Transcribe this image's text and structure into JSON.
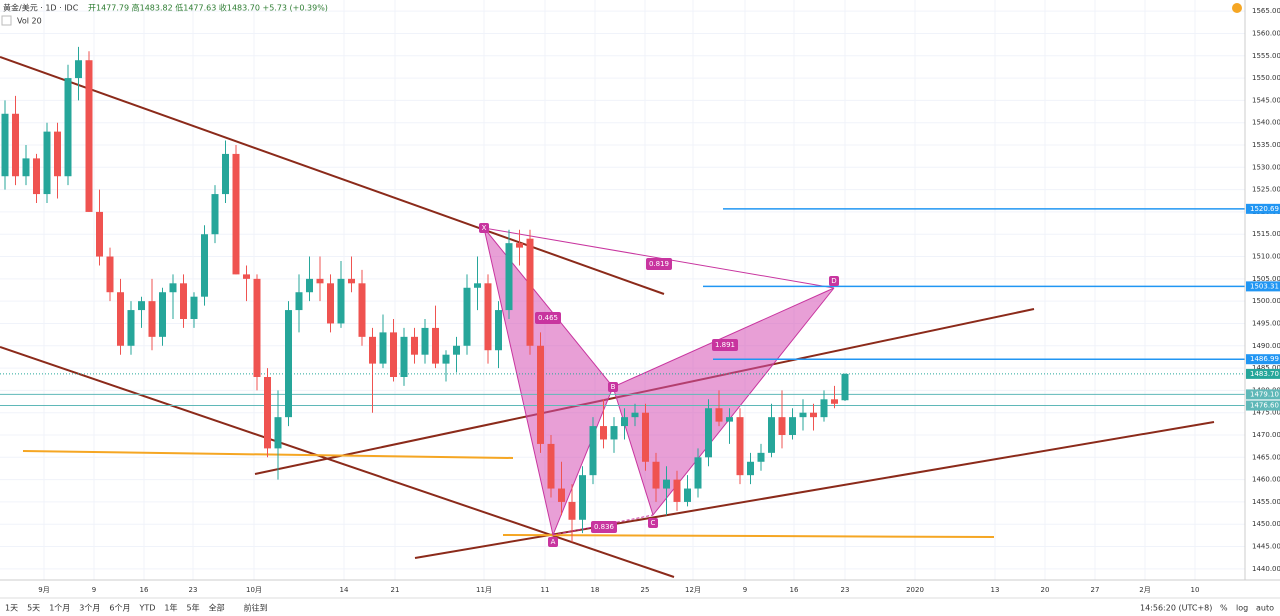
{
  "chart_data": {
    "type": "candlestick",
    "header": {
      "symbol": "黄金/美元 · 1D · IDC",
      "ohlc": "开1477.79 高1483.82 低1477.63 收1483.70 +5.73 (+0.39%)",
      "volume": "Vol 20"
    },
    "open": [
      1528,
      1542,
      1528,
      1532,
      1524,
      1538,
      1528,
      1550,
      1554,
      1520,
      1510,
      1502,
      1490,
      1498,
      1500,
      1492,
      1502,
      1504,
      1496,
      1501,
      1515,
      1524,
      1533,
      1506,
      1505,
      1483,
      1467,
      1474,
      1498,
      1502,
      1505,
      1504,
      1495,
      1505,
      1504,
      1492,
      1486,
      1493,
      1483,
      1492,
      1488,
      1494,
      1486,
      1488,
      1490,
      1503,
      1504,
      1489,
      1498,
      1513,
      1514,
      1490,
      1468,
      1458,
      1455,
      1451,
      1461,
      1472,
      1469,
      1472,
      1474,
      1475,
      1464,
      1458,
      1460,
      1455,
      1458,
      1465,
      1476,
      1473,
      1474,
      1461,
      1464,
      1466,
      1474,
      1470,
      1474,
      1475,
      1474,
      1478,
      1477.79
    ],
    "high": [
      1545,
      1546,
      1535,
      1533,
      1540,
      1540,
      1553,
      1557,
      1556,
      1525,
      1512,
      1505,
      1500,
      1501,
      1505,
      1503,
      1506,
      1506,
      1502,
      1517,
      1526,
      1536,
      1535,
      1508,
      1506,
      1485,
      1480,
      1500,
      1506,
      1510,
      1510,
      1506,
      1509,
      1510,
      1507,
      1494,
      1497,
      1496,
      1494,
      1494,
      1496,
      1499,
      1489,
      1492,
      1506,
      1510,
      1506,
      1500,
      1516,
      1516,
      1516,
      1493,
      1470,
      1464,
      1459,
      1463,
      1474,
      1478,
      1474,
      1476,
      1477,
      1477,
      1466,
      1463,
      1462,
      1461,
      1467,
      1478,
      1480,
      1476,
      1476,
      1466,
      1468,
      1477,
      1480,
      1476,
      1478,
      1477,
      1480,
      1481,
      1483.82
    ],
    "low": [
      1525,
      1526,
      1526,
      1522,
      1522,
      1523,
      1526,
      1545,
      1520,
      1508,
      1500,
      1488,
      1488,
      1494,
      1489,
      1490,
      1496,
      1494,
      1494,
      1499,
      1513,
      1522,
      1506,
      1500,
      1480,
      1465,
      1460,
      1472,
      1493,
      1500,
      1500,
      1493,
      1494,
      1502,
      1490,
      1475,
      1485,
      1482,
      1481,
      1486,
      1486,
      1485,
      1482,
      1484,
      1488,
      1498,
      1486,
      1485,
      1496,
      1508,
      1488,
      1466,
      1456,
      1452,
      1446,
      1448,
      1459,
      1467,
      1466,
      1469,
      1472,
      1462,
      1455,
      1452,
      1453,
      1454,
      1456,
      1463,
      1472,
      1468,
      1459,
      1459,
      1462,
      1465,
      1467,
      1469,
      1471,
      1471,
      1473,
      1476,
      1477.63
    ],
    "close": [
      1542,
      1528,
      1532,
      1524,
      1538,
      1528,
      1550,
      1554,
      1520,
      1510,
      1502,
      1490,
      1498,
      1500,
      1492,
      1502,
      1504,
      1496,
      1501,
      1515,
      1524,
      1533,
      1506,
      1505,
      1483,
      1467,
      1474,
      1498,
      1502,
      1505,
      1504,
      1495,
      1505,
      1504,
      1492,
      1486,
      1493,
      1483,
      1492,
      1488,
      1494,
      1486,
      1488,
      1490,
      1503,
      1504,
      1489,
      1498,
      1513,
      1512,
      1490,
      1468,
      1458,
      1455,
      1451,
      1461,
      1472,
      1469,
      1472,
      1474,
      1475,
      1464,
      1458,
      1460,
      1455,
      1458,
      1465,
      1476,
      1473,
      1474,
      1461,
      1464,
      1466,
      1474,
      1470,
      1474,
      1475,
      1474,
      1478,
      1477,
      1483.7
    ],
    "up_color": "#26a69a",
    "down_color": "#ef5350",
    "ylim": [
      1437.5,
      1567.5
    ],
    "yticks": [
      {
        "value": 1440,
        "label": "1440.00"
      },
      {
        "value": 1445,
        "label": "1445.00"
      },
      {
        "value": 1450,
        "label": "1450.00"
      },
      {
        "value": 1455,
        "label": "1455.00"
      },
      {
        "value": 1460,
        "label": "1460.00"
      },
      {
        "value": 1465,
        "label": "1465.00"
      },
      {
        "value": 1470,
        "label": "1470.00"
      },
      {
        "value": 1475,
        "label": "1475.00"
      },
      {
        "value": 1480,
        "label": "1480.00"
      },
      {
        "value": 1485,
        "label": "1485.00"
      },
      {
        "value": 1490,
        "label": "1490.00"
      },
      {
        "value": 1495,
        "label": "1495.00"
      },
      {
        "value": 1500,
        "label": "1500.00"
      },
      {
        "value": 1505,
        "label": "1505.00"
      },
      {
        "value": 1510,
        "label": "1510.00"
      },
      {
        "value": 1515,
        "label": "1515.00"
      },
      {
        "value": 1520,
        "label": "1520.00"
      },
      {
        "value": 1525,
        "label": "1525.00"
      },
      {
        "value": 1530,
        "label": "1530.00"
      },
      {
        "value": 1535,
        "label": "1535.00"
      },
      {
        "value": 1540,
        "label": "1540.00"
      },
      {
        "value": 1545,
        "label": "1545.00"
      },
      {
        "value": 1550,
        "label": "1550.00"
      },
      {
        "value": 1555,
        "label": "1555.00"
      },
      {
        "value": 1560,
        "label": "1560.00"
      },
      {
        "value": 1565,
        "label": "1565.00"
      }
    ],
    "x_axis_labels": [
      "9月",
      "9",
      "16",
      "23",
      "10月",
      "14",
      "21",
      "11月",
      "11",
      "18",
      "25",
      "12月",
      "9",
      "16",
      "23",
      "2020",
      "13",
      "20",
      "27",
      "2月",
      "10"
    ],
    "price_tags": [
      {
        "value": 1520.69,
        "color": "#2196f3"
      },
      {
        "value": 1503.31,
        "color": "#2196f3"
      },
      {
        "value": 1486.99,
        "color": "#2196f3"
      },
      {
        "value": 1483.7,
        "label": "1483.70",
        "color": "#26a69a"
      },
      {
        "value": 1479.1,
        "label": "1479.10",
        "color": "#5fb8b8"
      },
      {
        "value": 1476.6,
        "label": "1476.60",
        "color": "#5fb8b8"
      }
    ],
    "pattern_points": [
      "X",
      "A",
      "B",
      "C",
      "D"
    ],
    "pattern_ratios": [
      "0.819",
      "0.465",
      "1.891",
      "0.836"
    ],
    "toolbar": {
      "ranges": [
        "1天",
        "5天",
        "1个月",
        "3个月",
        "6个月",
        "YTD",
        "1年",
        "5年",
        "全部"
      ],
      "goto": "前往到",
      "time": "14:56:20 (UTC+8)",
      "percent": "%",
      "log": "log",
      "auto": "auto"
    }
  }
}
